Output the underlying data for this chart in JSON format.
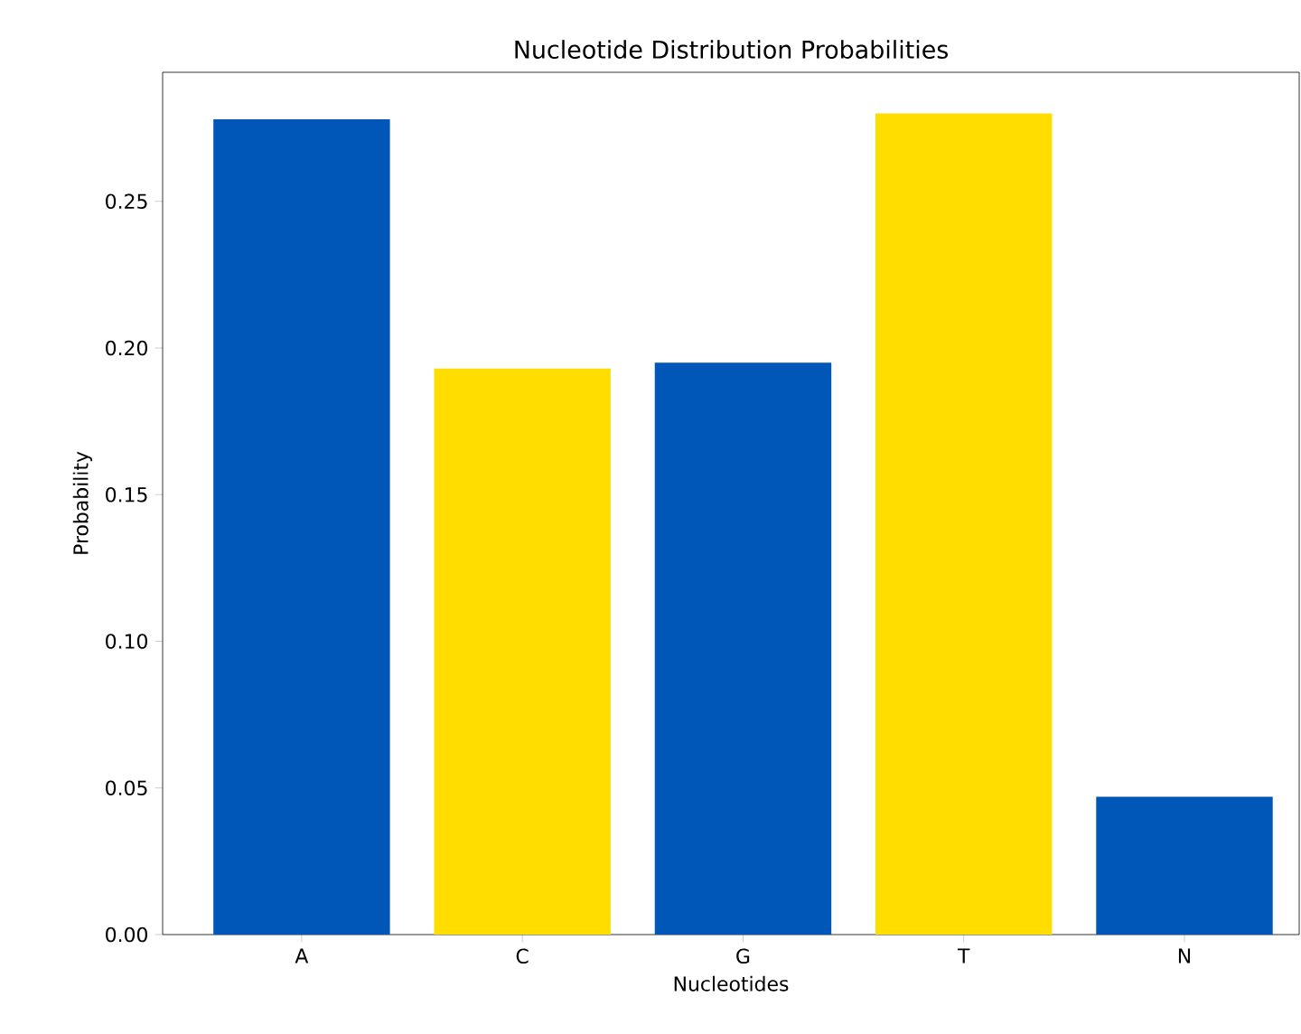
{
  "chart_data": {
    "type": "bar",
    "title": "Nucleotide Distribution Probabilities",
    "xlabel": "Nucleotides",
    "ylabel": "Probability",
    "categories": [
      "A",
      "C",
      "G",
      "T",
      "N"
    ],
    "values": [
      0.278,
      0.193,
      0.195,
      0.28,
      0.047
    ],
    "colors": [
      "#0057b7",
      "#ffdd00",
      "#0057b7",
      "#ffdd00",
      "#0057b7"
    ],
    "ylim": [
      0,
      0.294
    ],
    "yticks": [
      {
        "value": 0,
        "label": "0.00"
      },
      {
        "value": 0.05,
        "label": "0.05"
      },
      {
        "value": 0.1,
        "label": "0.10"
      },
      {
        "value": 0.15,
        "label": "0.15"
      },
      {
        "value": 0.2,
        "label": "0.20"
      },
      {
        "value": 0.25,
        "label": "0.25"
      }
    ],
    "grid": false
  }
}
